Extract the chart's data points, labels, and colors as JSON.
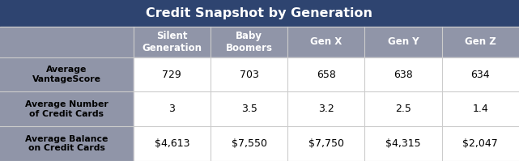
{
  "title": "Credit Snapshot by Generation",
  "title_bg": "#2E4470",
  "title_color": "#FFFFFF",
  "header_bg": "#9095A8",
  "header_color": "#FFFFFF",
  "row_label_bg": "#9095A8",
  "row_label_color": "#000000",
  "data_bg": "#FFFFFF",
  "border_color": "#CCCCCC",
  "outer_bg": "#2E4470",
  "col_headers": [
    "Silent\nGeneration",
    "Baby\nBoomers",
    "Gen X",
    "Gen Y",
    "Gen Z"
  ],
  "row_labels": [
    "Average\nVantageScore",
    "Average Number\nof Credit Cards",
    "Average Balance\non Credit Cards"
  ],
  "data": [
    [
      "729",
      "703",
      "658",
      "638",
      "634"
    ],
    [
      "3",
      "3.5",
      "3.2",
      "2.5",
      "1.4"
    ],
    [
      "$4,613",
      "$7,550",
      "$7,750",
      "$4,315",
      "$2,047"
    ]
  ],
  "figsize": [
    6.41,
    1.99
  ],
  "dpi": 100
}
